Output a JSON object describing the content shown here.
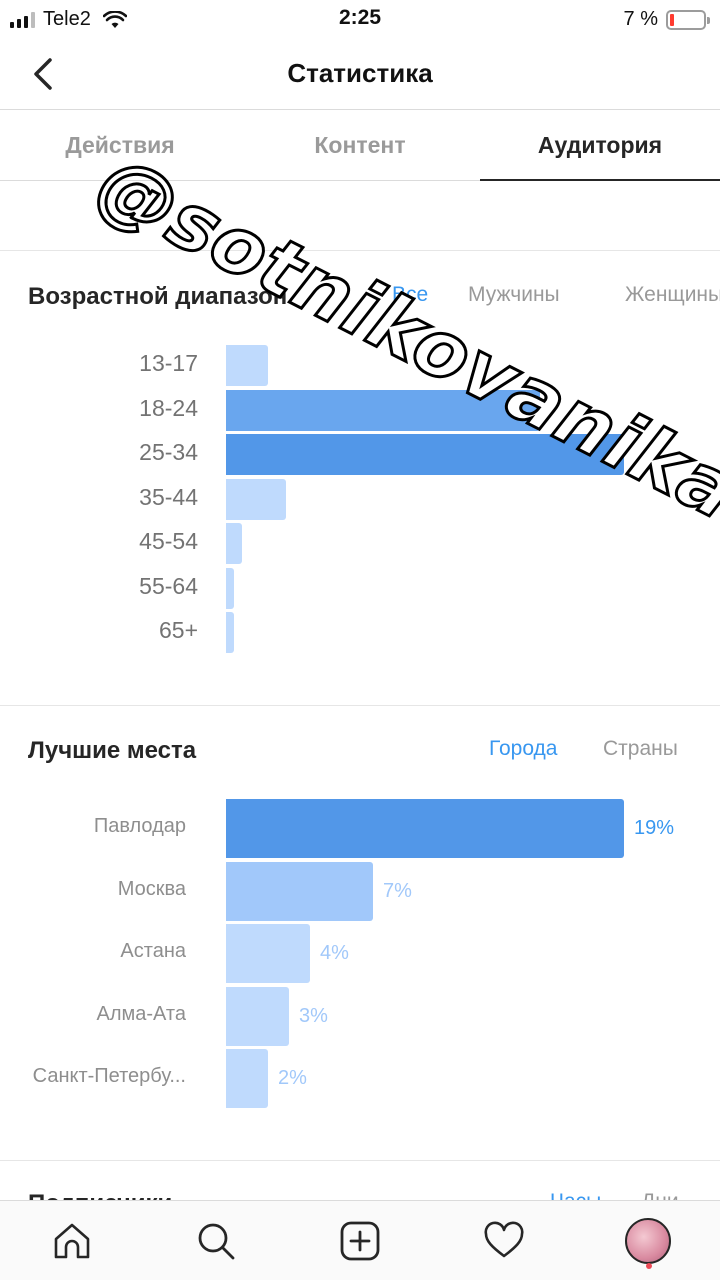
{
  "status_bar": {
    "carrier": "Tele2",
    "time": "2:25",
    "battery": "7 %",
    "battery_level": 0.07
  },
  "nav": {
    "title": "Статистика"
  },
  "tabs": [
    {
      "label": "Действия"
    },
    {
      "label": "Контент"
    },
    {
      "label": "Аудитория"
    }
  ],
  "watermark": "@sotnikovanika",
  "age_section": {
    "title": "Возрастной диапазон",
    "filters": [
      "Все",
      "Мужчины",
      "Женщины"
    ],
    "active_filter": "Все"
  },
  "places_section": {
    "title": "Лучшие места",
    "filters": [
      "Города",
      "Страны"
    ],
    "active_filter": "Города"
  },
  "chart_data": [
    {
      "type": "bar",
      "orientation": "horizontal",
      "title": "Возрастной диапазон",
      "categories": [
        "13-17",
        "18-24",
        "25-34",
        "35-44",
        "45-54",
        "55-64",
        "65+"
      ],
      "values": [
        10.5,
        79,
        100,
        15,
        4,
        2,
        2
      ]
    },
    {
      "type": "bar",
      "orientation": "horizontal",
      "title": "Лучшие места",
      "categories": [
        "Павлодар",
        "Москва",
        "Астана",
        "Алма-Ата",
        "Санкт-Петербу..."
      ],
      "values": [
        19,
        7,
        4,
        3,
        2
      ],
      "value_labels": [
        "19%",
        "7%",
        "4%",
        "3%",
        "2%"
      ]
    }
  ],
  "followers_section": {
    "title": "Подписчики",
    "filters": [
      "Часы",
      "Дни"
    ]
  },
  "colors": {
    "accent": "#3897f0",
    "bar_dark": "#5297e8",
    "bar_mid": "#69a6ee",
    "bar_light": "#bfdafd",
    "bar_light2": "#a1c8fa"
  },
  "bottom_nav": [
    "home-icon",
    "search-icon",
    "add-post-icon",
    "heart-icon",
    "profile-avatar"
  ]
}
